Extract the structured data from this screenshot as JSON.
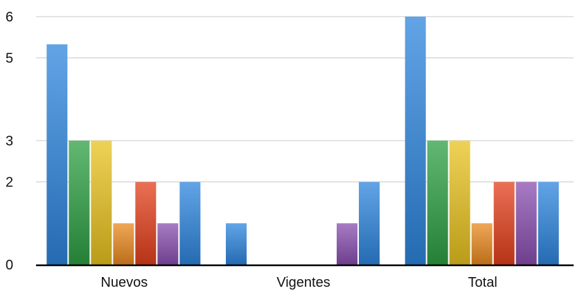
{
  "chart_data": {
    "type": "bar",
    "title": "",
    "xlabel": "",
    "ylabel": "",
    "categories": [
      "Nuevos",
      "Vigentes",
      "Total"
    ],
    "y_ticks": [
      0,
      2,
      3,
      5,
      6
    ],
    "ylim": [
      0,
      6
    ],
    "grid": true,
    "legend": "none",
    "series": [
      {
        "values": [
          5.33,
          1,
          6
        ],
        "color": "#2e86de"
      },
      {
        "values": [
          3,
          0,
          3
        ],
        "color": "#2ea043"
      },
      {
        "values": [
          3,
          0,
          3
        ],
        "color": "#e8c31f"
      },
      {
        "values": [
          1,
          0,
          1
        ],
        "color": "#ea8a1f"
      },
      {
        "values": [
          2,
          0,
          2
        ],
        "color": "#e3401c"
      },
      {
        "values": [
          1,
          1,
          2
        ],
        "color": "#8a4fb0"
      },
      {
        "values": [
          2,
          2,
          2
        ],
        "color": "#2e86de"
      }
    ]
  }
}
